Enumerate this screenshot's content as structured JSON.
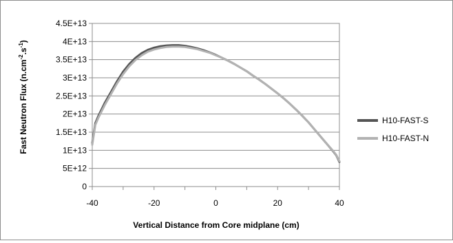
{
  "chart_data": {
    "type": "line",
    "title": "",
    "xlabel": "Vertical Distance  from Core midplane (cm)",
    "ylabel": "Fast Neutron Flux (n.cm",
    "ylabel_sup1": "-2",
    "ylabel_mid": ".s",
    "ylabel_sup2": "-1",
    "ylabel_end": ")",
    "xlim": [
      -40,
      40
    ],
    "ylim": [
      0,
      45000000000000.0
    ],
    "x_ticks": [
      -40,
      -20,
      0,
      20,
      40
    ],
    "x_tick_labels": [
      "-40",
      "-20",
      "0",
      "20",
      "40"
    ],
    "y_ticks": [
      0,
      5000000000000.0,
      10000000000000.0,
      15000000000000.0,
      20000000000000.0,
      25000000000000.0,
      30000000000000.0,
      35000000000000.0,
      40000000000000.0,
      45000000000000.0
    ],
    "y_tick_labels": [
      "0",
      "5E+12",
      "1E+13",
      "1.5E+13",
      "2E+13",
      "2.5E+13",
      "3E+13",
      "3.5E+13",
      "4E+13",
      "4.5E+13"
    ],
    "grid": "horizontal",
    "legend_position": "right",
    "series": [
      {
        "name": "H10-FAST-S",
        "color": "#555555",
        "x": [
          -40,
          -39,
          -38,
          -36,
          -34,
          -32,
          -30,
          -28,
          -26,
          -24,
          -22,
          -20,
          -18,
          -16,
          -14,
          -12,
          -10,
          -8,
          -6,
          -4,
          -2,
          0,
          2,
          4,
          6,
          8,
          10,
          12,
          14,
          16,
          18,
          20,
          22,
          24,
          26,
          28,
          30,
          32,
          34,
          36,
          38,
          39,
          40
        ],
        "y": [
          12000000000000.0,
          17500000000000.0,
          19500000000000.0,
          23000000000000.0,
          26000000000000.0,
          29000000000000.0,
          31700000000000.0,
          33800000000000.0,
          35500000000000.0,
          36800000000000.0,
          37700000000000.0,
          38300000000000.0,
          38700000000000.0,
          38900000000000.0,
          39000000000000.0,
          39000000000000.0,
          38800000000000.0,
          38500000000000.0,
          38100000000000.0,
          37600000000000.0,
          37000000000000.0,
          36300000000000.0,
          35500000000000.0,
          34700000000000.0,
          33800000000000.0,
          32800000000000.0,
          31800000000000.0,
          30600000000000.0,
          29500000000000.0,
          28300000000000.0,
          27000000000000.0,
          25700000000000.0,
          24300000000000.0,
          22800000000000.0,
          21200000000000.0,
          19500000000000.0,
          17700000000000.0,
          15700000000000.0,
          13700000000000.0,
          11700000000000.0,
          9700000000000.0,
          8600000000000.0,
          6800000000000.0
        ]
      },
      {
        "name": "H10-FAST-N",
        "color": "#b2b2b2",
        "x": [
          -40,
          -39,
          -38,
          -36,
          -34,
          -32,
          -30,
          -28,
          -26,
          -24,
          -22,
          -20,
          -18,
          -16,
          -14,
          -12,
          -10,
          -8,
          -6,
          -4,
          -2,
          0,
          2,
          4,
          6,
          8,
          10,
          12,
          14,
          16,
          18,
          20,
          22,
          24,
          26,
          28,
          30,
          32,
          34,
          36,
          38,
          39,
          40
        ],
        "y": [
          11500000000000.0,
          17000000000000.0,
          19000000000000.0,
          22400000000000.0,
          25400000000000.0,
          28400000000000.0,
          31000000000000.0,
          33200000000000.0,
          34900000000000.0,
          36200000000000.0,
          37200000000000.0,
          37800000000000.0,
          38200000000000.0,
          38500000000000.0,
          38600000000000.0,
          38600000000000.0,
          38500000000000.0,
          38200000000000.0,
          37900000000000.0,
          37400000000000.0,
          36900000000000.0,
          36200000000000.0,
          35500000000000.0,
          34700000000000.0,
          33800000000000.0,
          32800000000000.0,
          31800000000000.0,
          30600000000000.0,
          29500000000000.0,
          28300000000000.0,
          27000000000000.0,
          25700000000000.0,
          24300000000000.0,
          22800000000000.0,
          21200000000000.0,
          19500000000000.0,
          17700000000000.0,
          15700000000000.0,
          13700000000000.0,
          11700000000000.0,
          9800000000000.0,
          8700000000000.0,
          7000000000000.0
        ]
      }
    ]
  }
}
